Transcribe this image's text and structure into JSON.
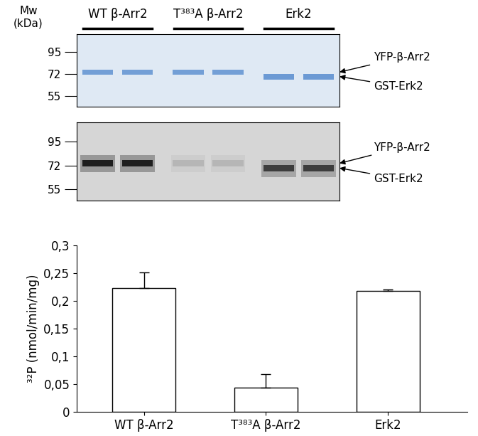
{
  "gel": {
    "mw_label": "Mw\n(kDa)",
    "markers": [
      95,
      72,
      55
    ],
    "ylim": [
      48,
      119
    ],
    "groups": [
      {
        "label": "WT β-Arr2",
        "lanes": 2,
        "band_mw": 74
      },
      {
        "label": "T³⁸³A β-Arr2",
        "lanes": 2,
        "band_mw": 74
      },
      {
        "label": "Erk2",
        "lanes": 2,
        "band_mw": 70
      }
    ],
    "panels": [
      {
        "type": "coomassie",
        "intensity": [
          0.75,
          0.75,
          0.8
        ]
      },
      {
        "type": "autoradiograph",
        "intensity": [
          0.9,
          0.12,
          0.7
        ]
      }
    ],
    "band_labels": [
      {
        "label": "YFP-β-Arr2",
        "mw": 74
      },
      {
        "label": "GST-Erk2",
        "mw": 70
      }
    ]
  },
  "chart_data": {
    "type": "bar",
    "categories": [
      "WT β-Arr2",
      "T³⁸³A β-Arr2",
      "Erk2"
    ],
    "values": [
      0.223,
      0.043,
      0.218
    ],
    "errors": [
      0.028,
      0.025,
      0.003
    ],
    "color": "white",
    "y_label": "³²P (nmol/min/mg)",
    "ylim": [
      0,
      0.3
    ],
    "yticks": [
      {
        "value": 0,
        "label": "0"
      },
      {
        "value": 0.05,
        "label": "0,05"
      },
      {
        "value": 0.1,
        "label": "0,1"
      },
      {
        "value": 0.15,
        "label": "0,15"
      },
      {
        "value": 0.2,
        "label": "0,2"
      },
      {
        "value": 0.25,
        "label": "0,25"
      },
      {
        "value": 0.3,
        "label": "0,3"
      }
    ]
  }
}
